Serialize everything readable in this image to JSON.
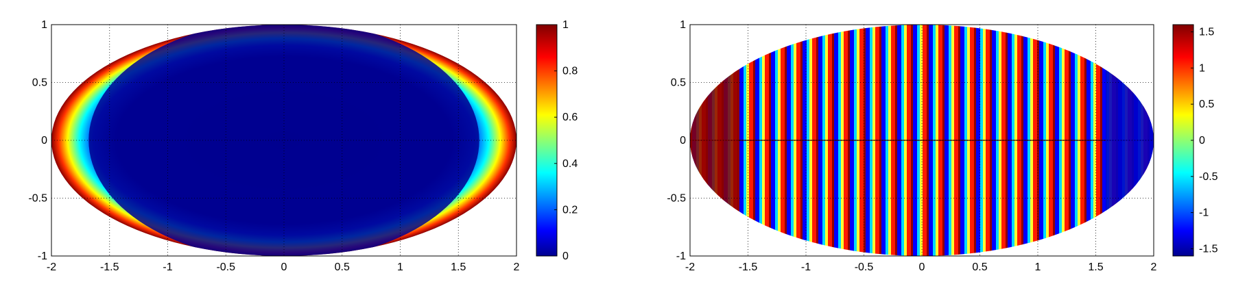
{
  "figure": {
    "panels": 2
  },
  "chart_data": [
    {
      "type": "heatmap",
      "title": "",
      "xlabel": "",
      "ylabel": "",
      "field": "amplitude",
      "domain_shape": "ellipse",
      "xlim": [
        -2,
        2
      ],
      "ylim": [
        -1,
        1
      ],
      "x_ticks": [
        "-2",
        "-1.5",
        "-1",
        "-0.5",
        "0",
        "0.5",
        "1",
        "1.5",
        "2"
      ],
      "y_ticks": [
        "-1",
        "-0.5",
        "0",
        "0.5",
        "1"
      ],
      "grid": true,
      "grid_style": "dotted",
      "colormap": "jet",
      "colorbar": {
        "range": [
          0,
          1
        ],
        "ticks": [
          "0",
          "0.2",
          "0.4",
          "0.6",
          "0.8",
          "1"
        ],
        "position": "right"
      },
      "description_values": {
        "center_value": 0.0,
        "edge_peak_value": 1.0,
        "peak_locations_x": [
          -1.9,
          1.9
        ]
      }
    },
    {
      "type": "heatmap",
      "title": "",
      "xlabel": "",
      "ylabel": "",
      "field": "phase",
      "domain_shape": "ellipse",
      "xlim": [
        -2,
        2
      ],
      "ylim": [
        -1,
        1
      ],
      "x_ticks": [
        "-2",
        "-1.5",
        "-1",
        "-0.5",
        "0",
        "0.5",
        "1",
        "1.5",
        "2"
      ],
      "y_ticks": [
        "-1",
        "-0.5",
        "0",
        "0.5",
        "1"
      ],
      "grid": true,
      "grid_style": "dotted",
      "colormap": "jet",
      "colorbar": {
        "range": [
          -1.6,
          1.6
        ],
        "ticks": [
          "-1.5",
          "-1",
          "-0.5",
          "0",
          "0.5",
          "1",
          "1.5"
        ],
        "position": "right"
      },
      "description_values": {
        "stripe_count_approx": 26,
        "symmetry_axis_y": 0
      }
    }
  ],
  "colors": {
    "jet": [
      "#00008f",
      "#0000ff",
      "#0080ff",
      "#00ffff",
      "#80ff80",
      "#ffff00",
      "#ff8000",
      "#ff0000",
      "#800000"
    ],
    "grid": "#000000",
    "background": "#ffffff"
  }
}
